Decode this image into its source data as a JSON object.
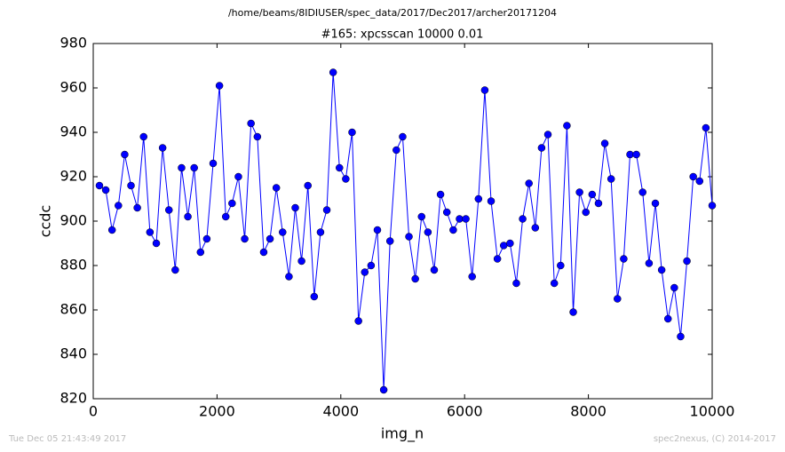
{
  "header": {
    "path": "/home/beams/8IDIUSER/spec_data/2017/Dec2017/archer20171204"
  },
  "footer": {
    "timestamp": "Tue Dec 05 21:43:49 2017",
    "credit": "spec2nexus, (C) 2014-2017"
  },
  "chart_data": {
    "type": "line",
    "title": "#165: xpcsscan 10000 0.01",
    "x_label": "img_n",
    "y_label": "ccdc",
    "color": "#0000ff",
    "marker": "circle",
    "x": [
      100,
      202,
      304,
      406,
      508,
      610,
      712,
      814,
      916,
      1019,
      1121,
      1223,
      1325,
      1427,
      1529,
      1631,
      1733,
      1835,
      1937,
      2039,
      2141,
      2243,
      2345,
      2447,
      2549,
      2652,
      2754,
      2856,
      2958,
      3060,
      3162,
      3264,
      3366,
      3468,
      3570,
      3672,
      3774,
      3876,
      3978,
      4080,
      4182,
      4285,
      4387,
      4489,
      4591,
      4693,
      4795,
      4897,
      4999,
      5101,
      5203,
      5305,
      5407,
      5509,
      5611,
      5713,
      5816,
      5918,
      6020,
      6122,
      6224,
      6326,
      6428,
      6530,
      6632,
      6734,
      6836,
      6938,
      7040,
      7142,
      7244,
      7346,
      7449,
      7551,
      7653,
      7755,
      7857,
      7959,
      8061,
      8163,
      8265,
      8367,
      8469,
      8571,
      8673,
      8775,
      8877,
      8980,
      9082,
      9184,
      9286,
      9388,
      9490,
      9592,
      9694,
      9796,
      9898,
      10000
    ],
    "values": [
      916,
      914,
      896,
      907,
      930,
      916,
      906,
      938,
      895,
      890,
      933,
      905,
      878,
      924,
      902,
      924,
      886,
      892,
      926,
      961,
      902,
      908,
      920,
      892,
      944,
      938,
      886,
      892,
      915,
      895,
      875,
      906,
      882,
      916,
      866,
      895,
      905,
      967,
      924,
      919,
      940,
      855,
      877,
      880,
      896,
      824,
      891,
      932,
      938,
      893,
      874,
      902,
      895,
      878,
      912,
      904,
      896,
      901,
      901,
      875,
      910,
      959,
      909,
      883,
      889,
      890,
      872,
      901,
      917,
      897,
      933,
      939,
      872,
      880,
      943,
      859,
      913,
      904,
      912,
      908,
      935,
      919,
      865,
      883,
      930,
      930,
      913,
      881,
      908,
      878,
      856,
      870,
      848,
      882,
      920,
      918,
      942,
      907
    ],
    "xlim": [
      0,
      10000
    ],
    "xticks": [
      0,
      2000,
      4000,
      6000,
      8000,
      10000
    ],
    "ylim": [
      820,
      980
    ],
    "yticks": [
      820,
      840,
      860,
      880,
      900,
      920,
      940,
      960,
      980
    ]
  }
}
